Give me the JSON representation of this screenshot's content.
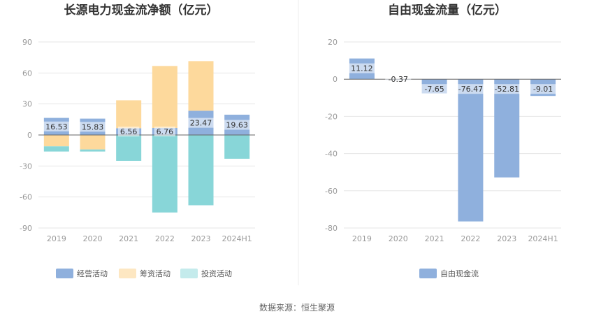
{
  "source_label": "数据来源：恒生聚源",
  "chart_data": [
    {
      "type": "bar",
      "stacked": true,
      "title": "长源电力现金流净额（亿元）",
      "categories": [
        "2019",
        "2020",
        "2021",
        "2022",
        "2023",
        "2024H1"
      ],
      "ylim": [
        -90,
        90
      ],
      "yticks": [
        90,
        60,
        30,
        0,
        -30,
        -60,
        -90
      ],
      "series": [
        {
          "name": "经营活动",
          "color": "#8fb0dd",
          "values": [
            16.53,
            15.83,
            6.56,
            6.76,
            23.47,
            19.63
          ],
          "labels": [
            "16.53",
            "15.83",
            "6.56",
            "6.76",
            "23.47",
            "19.63"
          ]
        },
        {
          "name": "筹资活动",
          "color": "#fdd99c",
          "values": [
            -11,
            -14,
            27,
            60,
            48,
            0
          ]
        },
        {
          "name": "投资活动",
          "color": "#88d6d8",
          "values": [
            -5,
            -2,
            -25,
            -75,
            -68,
            -23
          ]
        }
      ]
    },
    {
      "type": "bar",
      "title": "自由现金流量（亿元）",
      "categories": [
        "2019",
        "2020",
        "2021",
        "2022",
        "2023",
        "2024H1"
      ],
      "ylim": [
        -80,
        20
      ],
      "yticks": [
        20,
        0,
        -20,
        -40,
        -60,
        -80
      ],
      "series": [
        {
          "name": "自由现金流",
          "color": "#8fb0dd",
          "values": [
            11.12,
            -0.37,
            -7.65,
            -76.47,
            -52.81,
            -9.01
          ],
          "labels": [
            "11.12",
            "-0.37",
            "-7.65",
            "-76.47",
            "-52.81",
            "-9.01"
          ]
        }
      ]
    }
  ]
}
